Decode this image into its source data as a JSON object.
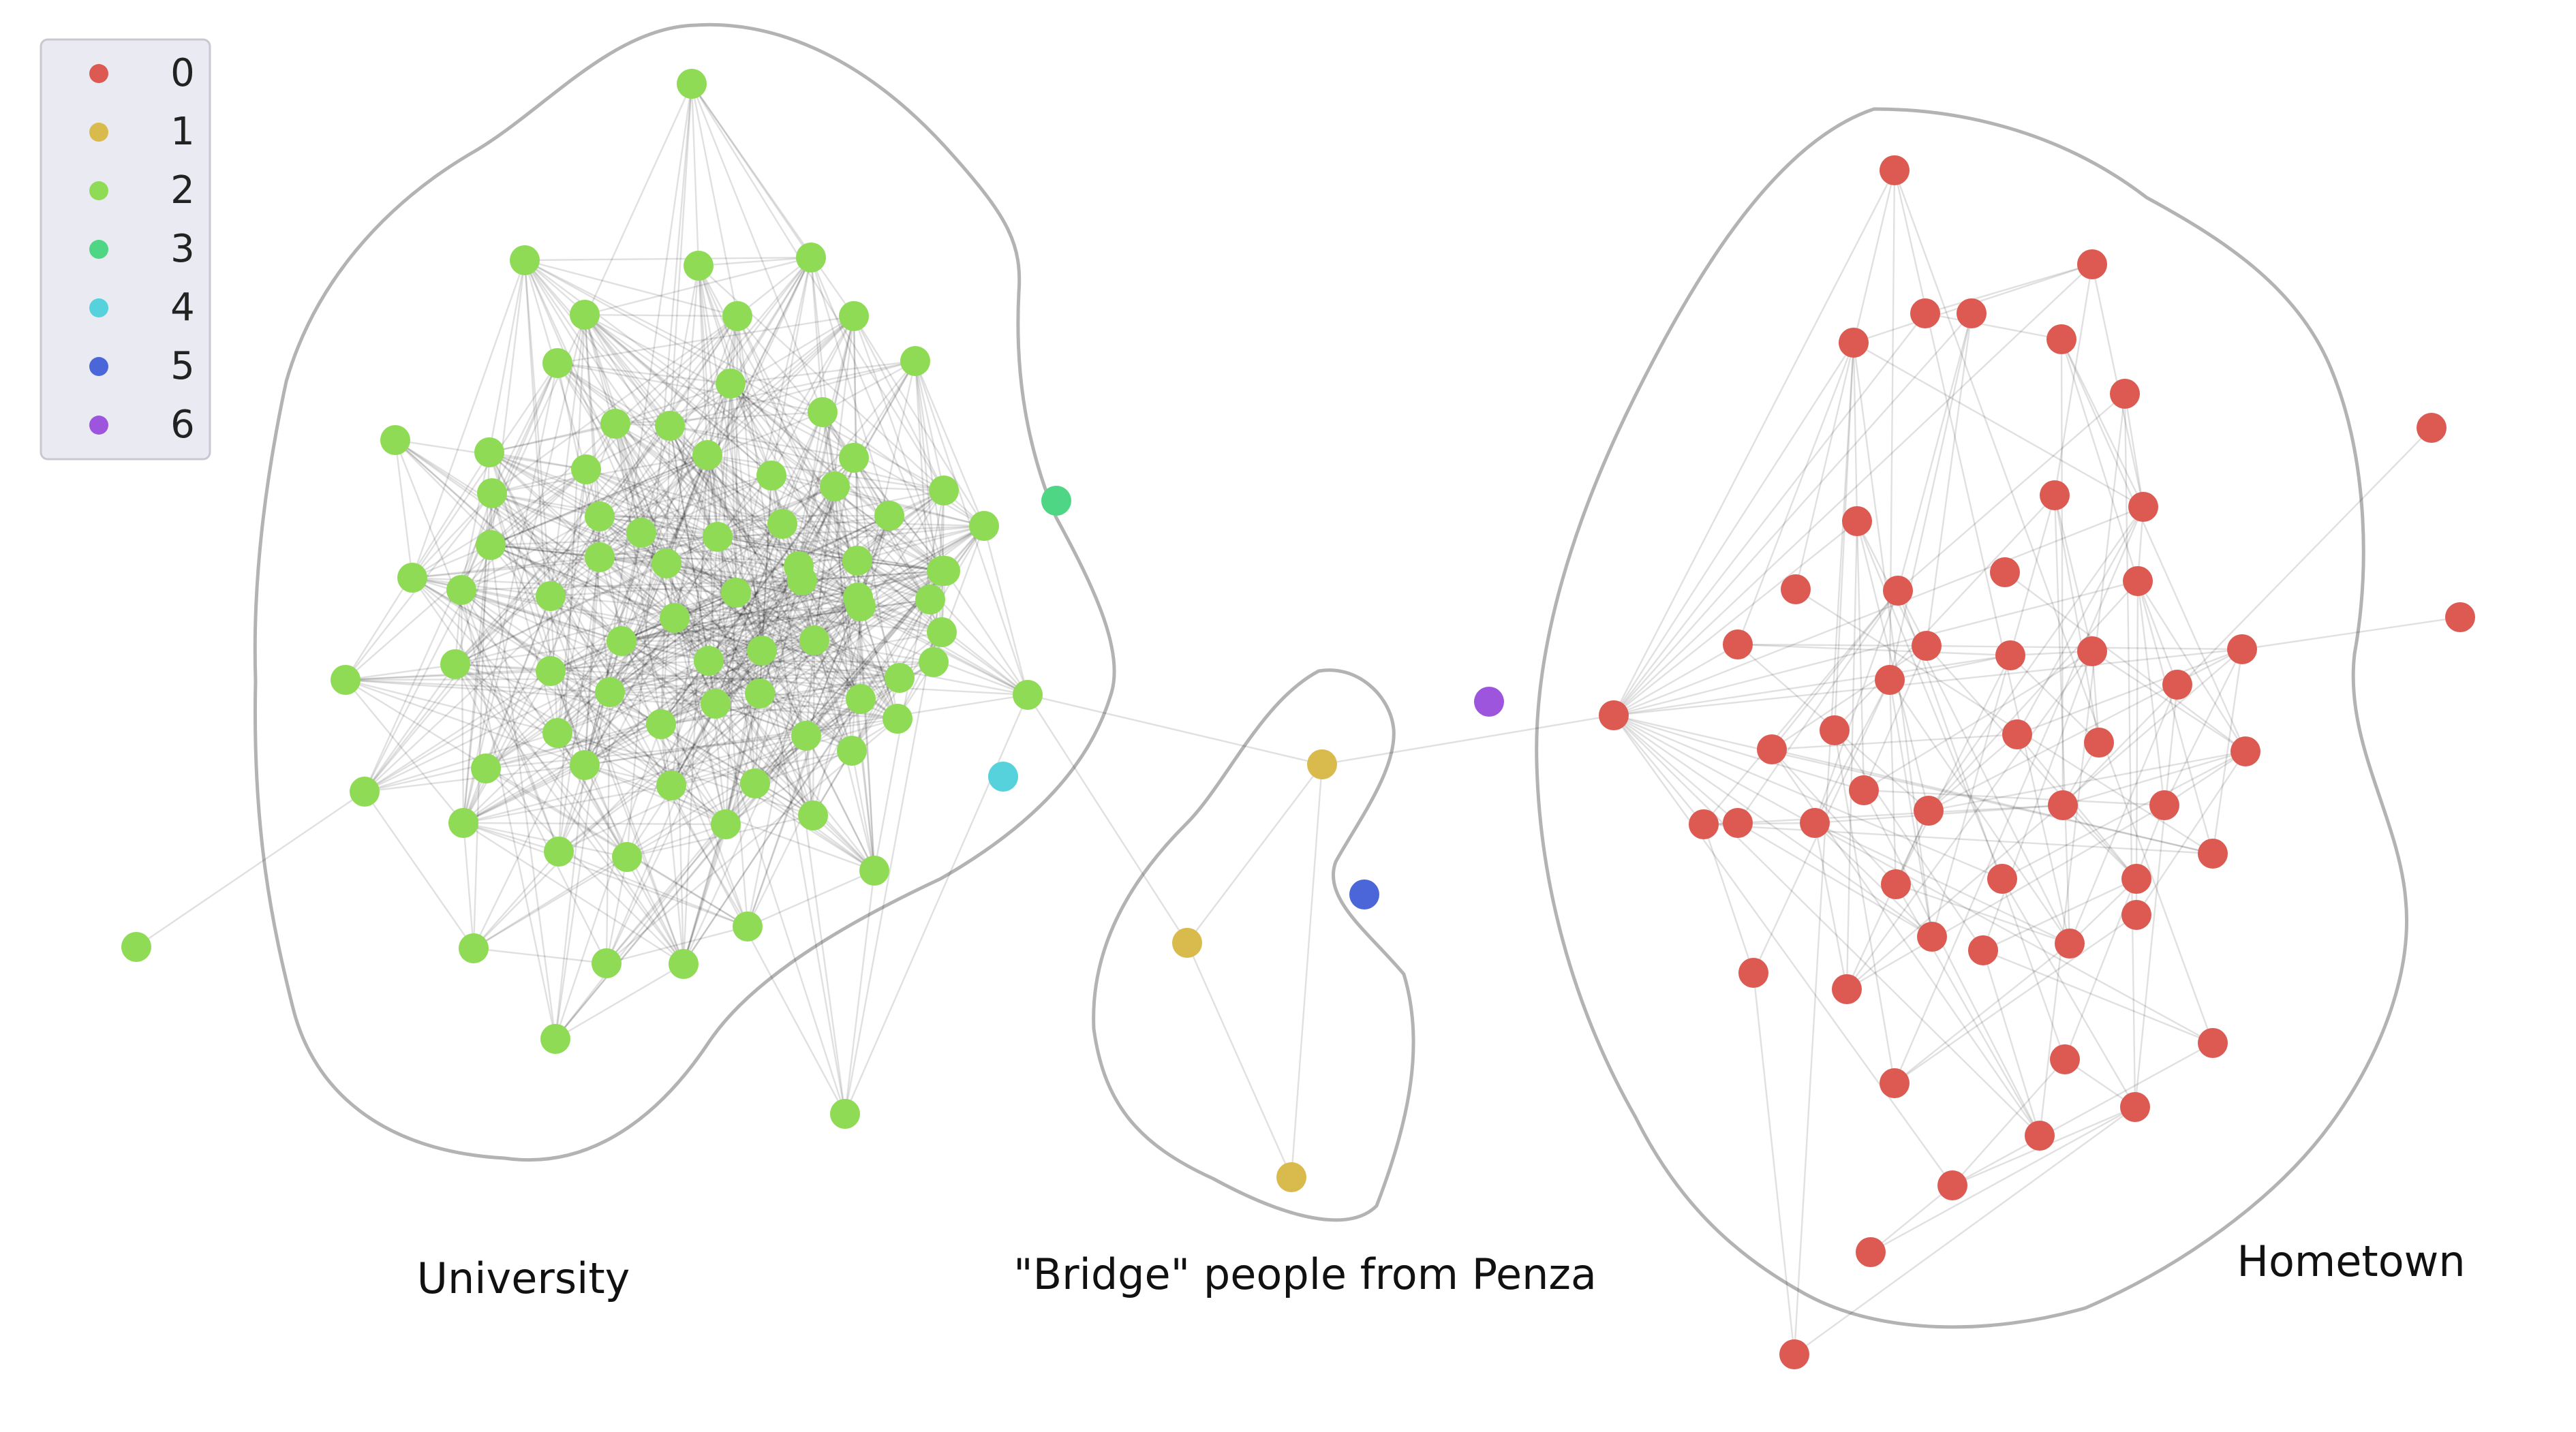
{
  "legend": {
    "items": [
      {
        "label": "0",
        "color": "#dc5a52"
      },
      {
        "label": "1",
        "color": "#d9ba4c"
      },
      {
        "label": "2",
        "color": "#8fdb55"
      },
      {
        "label": "3",
        "color": "#4fd685"
      },
      {
        "label": "4",
        "color": "#55d2dc"
      },
      {
        "label": "5",
        "color": "#4a66d9"
      },
      {
        "label": "6",
        "color": "#9c55dc"
      }
    ]
  },
  "groups": {
    "university": "University",
    "bridge": "\"Bridge\" people from Penza",
    "hometown": "Hometown"
  },
  "colors": {
    "hull": "#b3b3b3",
    "edge": "#000000",
    "legend_bg": "#eaeaf2",
    "legend_border": "#c8c8d0"
  }
}
